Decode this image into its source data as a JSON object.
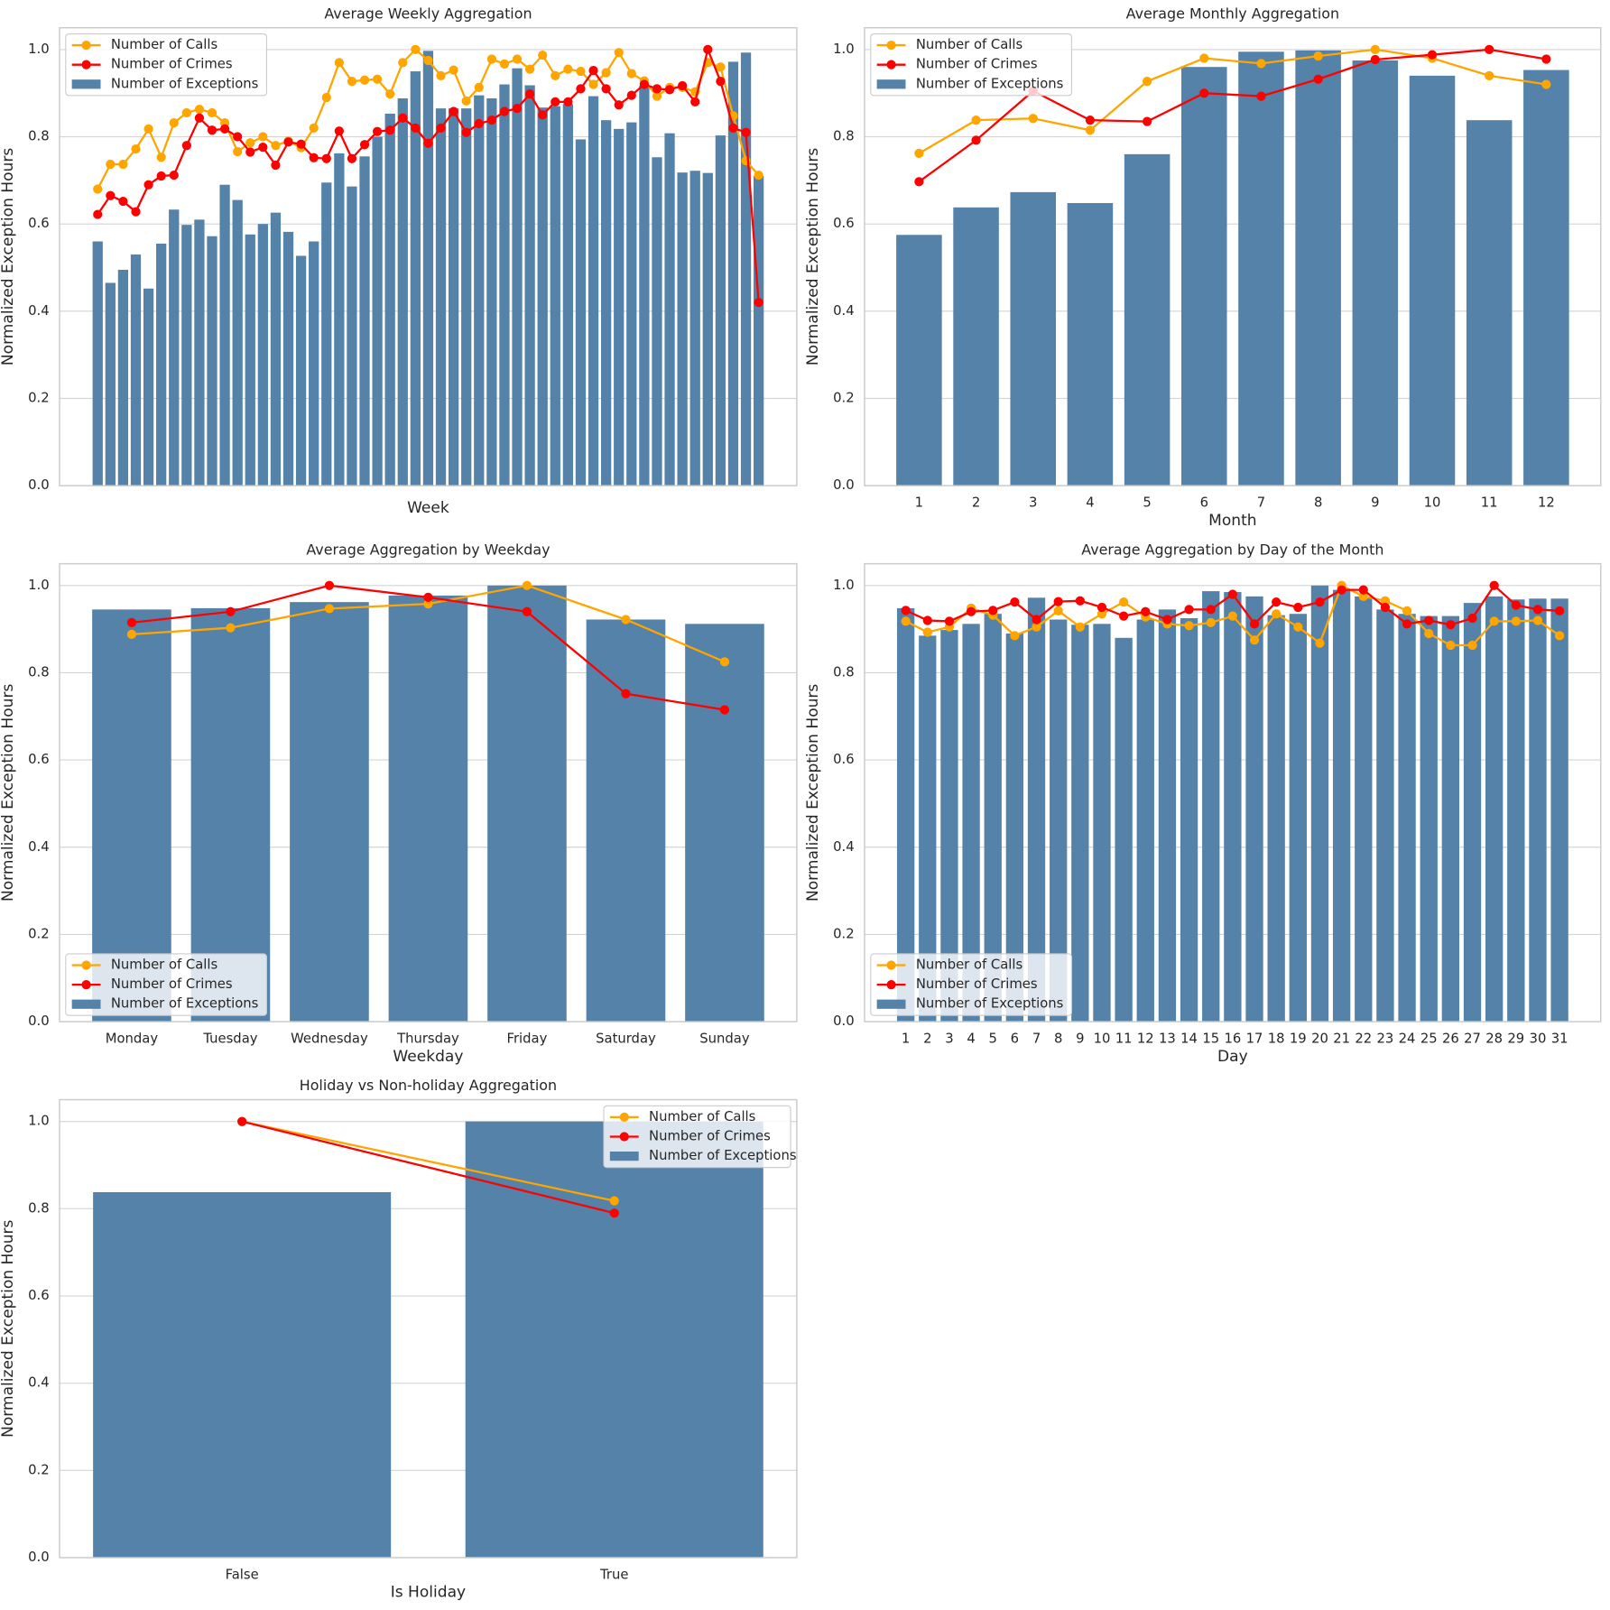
{
  "chart_data": [
    {
      "type": "bar",
      "title": "Average Weekly Aggregation",
      "xlabel": "Week",
      "ylabel": "Normalized Exception Hours",
      "categories": [
        null,
        null,
        null,
        null,
        null,
        null,
        null,
        null,
        null,
        null,
        null,
        null,
        null,
        null,
        null,
        null,
        null,
        null,
        null,
        null,
        null,
        null,
        null,
        null,
        null,
        null,
        null,
        null,
        null,
        null,
        null,
        null,
        null,
        null,
        null,
        null,
        null,
        null,
        null,
        null,
        null,
        null,
        null,
        null,
        null,
        null,
        null,
        null,
        null,
        null,
        null,
        null,
        null
      ],
      "series": [
        {
          "name": "Number of Calls",
          "type": "line",
          "color": "#ffa500",
          "values": [
            0.68,
            0.737,
            0.737,
            0.772,
            0.818,
            0.753,
            0.832,
            0.855,
            0.863,
            0.855,
            0.832,
            0.766,
            0.786,
            0.8,
            0.78,
            0.79,
            0.775,
            0.82,
            0.89,
            0.97,
            0.927,
            0.93,
            0.932,
            0.898,
            0.97,
            1.0,
            0.975,
            0.94,
            0.953,
            0.882,
            0.913,
            0.978,
            0.967,
            0.978,
            0.955,
            0.987,
            0.94,
            0.955,
            0.95,
            0.92,
            0.947,
            0.993,
            0.945,
            0.928,
            0.893,
            0.913,
            0.913,
            0.903,
            0.97,
            0.96,
            0.848,
            0.745,
            0.712
          ]
        },
        {
          "name": "Number of Crimes",
          "type": "line",
          "color": "#ff0000",
          "values": [
            0.622,
            0.665,
            0.652,
            0.628,
            0.69,
            0.71,
            0.712,
            0.78,
            0.843,
            0.815,
            0.818,
            0.8,
            0.765,
            0.776,
            0.735,
            0.788,
            0.783,
            0.752,
            0.75,
            0.813,
            0.75,
            0.782,
            0.812,
            0.815,
            0.843,
            0.82,
            0.785,
            0.82,
            0.858,
            0.81,
            0.83,
            0.838,
            0.858,
            0.865,
            0.898,
            0.85,
            0.88,
            0.88,
            0.91,
            0.952,
            0.91,
            0.873,
            0.895,
            0.92,
            0.91,
            0.908,
            0.917,
            0.88,
            1.0,
            0.927,
            0.82,
            0.81,
            0.42
          ]
        },
        {
          "name": "Number of Exceptions",
          "type": "bar",
          "color": "#5482a8",
          "values": [
            0.56,
            0.465,
            0.495,
            0.53,
            0.452,
            0.555,
            0.633,
            0.598,
            0.61,
            0.572,
            0.69,
            0.655,
            0.576,
            0.6,
            0.626,
            0.582,
            0.527,
            0.56,
            0.695,
            0.762,
            0.686,
            0.755,
            0.8,
            0.853,
            0.888,
            0.95,
            0.997,
            0.865,
            0.865,
            0.865,
            0.895,
            0.888,
            0.92,
            0.957,
            0.918,
            0.867,
            0.87,
            0.875,
            0.794,
            0.893,
            0.838,
            0.818,
            0.833,
            0.917,
            0.753,
            0.808,
            0.718,
            0.722,
            0.717,
            0.803,
            0.972,
            0.993,
            0.71
          ]
        }
      ],
      "ylim": [
        0,
        1.05
      ],
      "yticks": [
        {
          "value": 0,
          "label": "0.0"
        },
        0.2,
        0.4,
        0.6,
        0.8,
        {
          "value": 1,
          "label": "1.0"
        }
      ],
      "grid": true,
      "legend": "upper left"
    },
    {
      "type": "bar",
      "title": "Average Monthly Aggregation",
      "xlabel": "Month",
      "ylabel": "Normalized Exception Hours",
      "categories": [
        "1",
        "2",
        "3",
        "4",
        "5",
        "6",
        "7",
        "8",
        "9",
        "10",
        "11",
        "12"
      ],
      "series": [
        {
          "name": "Number of Calls",
          "type": "line",
          "color": "#ffa500",
          "values": [
            0.762,
            0.838,
            0.842,
            0.815,
            0.927,
            0.98,
            0.968,
            0.985,
            1.0,
            0.98,
            0.94,
            0.92
          ]
        },
        {
          "name": "Number of Crimes",
          "type": "line",
          "color": "#ff0000",
          "values": [
            0.697,
            0.792,
            0.905,
            0.838,
            0.835,
            0.9,
            0.893,
            0.932,
            0.977,
            0.988,
            1.0,
            0.978
          ]
        },
        {
          "name": "Number of Exceptions",
          "type": "bar",
          "color": "#5482a8",
          "values": [
            0.575,
            0.638,
            0.673,
            0.648,
            0.76,
            0.96,
            0.995,
            0.998,
            0.975,
            0.94,
            0.838,
            0.953
          ]
        }
      ],
      "ylim": [
        0,
        1.05
      ],
      "yticks": [
        {
          "value": 0,
          "label": "0.0"
        },
        0.2,
        0.4,
        0.6,
        0.8,
        {
          "value": 1,
          "label": "1.0"
        }
      ],
      "grid": true,
      "legend": "upper left"
    },
    {
      "type": "bar",
      "title": "Average Aggregation by Weekday",
      "xlabel": "Weekday",
      "ylabel": "Normalized Exception Hours",
      "categories": [
        "Monday",
        "Tuesday",
        "Wednesday",
        "Thursday",
        "Friday",
        "Saturday",
        "Sunday"
      ],
      "series": [
        {
          "name": "Number of Calls",
          "type": "line",
          "color": "#ffa500",
          "values": [
            0.888,
            0.903,
            0.947,
            0.958,
            1.0,
            0.922,
            0.825
          ]
        },
        {
          "name": "Number of Crimes",
          "type": "line",
          "color": "#ff0000",
          "values": [
            0.915,
            0.94,
            1.0,
            0.973,
            0.94,
            0.752,
            0.715
          ]
        },
        {
          "name": "Number of Exceptions",
          "type": "bar",
          "color": "#5482a8",
          "values": [
            0.945,
            0.948,
            0.962,
            0.977,
            1.0,
            0.922,
            0.912
          ]
        }
      ],
      "ylim": [
        0,
        1.05
      ],
      "yticks": [
        {
          "value": 0,
          "label": "0.0"
        },
        0.2,
        0.4,
        0.6,
        0.8,
        {
          "value": 1,
          "label": "1.0"
        }
      ],
      "grid": true,
      "legend": "lower left"
    },
    {
      "type": "bar",
      "title": "Average Aggregation by Day of the Month",
      "xlabel": "Day",
      "ylabel": "Normalized Exception Hours",
      "categories": [
        "1",
        "2",
        "3",
        "4",
        "5",
        "6",
        "7",
        "8",
        "9",
        "10",
        "11",
        "12",
        "13",
        "14",
        "15",
        "16",
        "17",
        "18",
        "19",
        "20",
        "21",
        "22",
        "23",
        "24",
        "25",
        "26",
        "27",
        "28",
        "29",
        "30",
        "31"
      ],
      "series": [
        {
          "name": "Number of Calls",
          "type": "line",
          "color": "#ffa500",
          "values": [
            0.918,
            0.893,
            0.905,
            0.948,
            0.932,
            0.885,
            0.905,
            0.942,
            0.905,
            0.935,
            0.962,
            0.928,
            0.912,
            0.908,
            0.915,
            0.93,
            0.875,
            0.935,
            0.905,
            0.868,
            1.0,
            0.975,
            0.965,
            0.942,
            0.89,
            0.863,
            0.863,
            0.918,
            0.918,
            0.92,
            0.885
          ]
        },
        {
          "name": "Number of Crimes",
          "type": "line",
          "color": "#ff0000",
          "values": [
            0.943,
            0.92,
            0.918,
            0.94,
            0.943,
            0.962,
            0.922,
            0.963,
            0.965,
            0.95,
            0.93,
            0.94,
            0.922,
            0.945,
            0.945,
            0.98,
            0.912,
            0.962,
            0.95,
            0.962,
            0.99,
            0.99,
            0.95,
            0.912,
            0.92,
            0.91,
            0.925,
            1.0,
            0.955,
            0.945,
            0.942
          ]
        },
        {
          "name": "Number of Exceptions",
          "type": "bar",
          "color": "#5482a8",
          "values": [
            0.948,
            0.885,
            0.898,
            0.912,
            0.935,
            0.89,
            0.972,
            0.922,
            0.91,
            0.912,
            0.88,
            0.922,
            0.945,
            0.925,
            0.987,
            0.985,
            0.975,
            0.932,
            0.935,
            1.0,
            0.99,
            0.975,
            0.945,
            0.935,
            0.93,
            0.93,
            0.96,
            0.975,
            0.968,
            0.97,
            0.97
          ]
        }
      ],
      "ylim": [
        0,
        1.05
      ],
      "yticks": [
        {
          "value": 0,
          "label": "0.0"
        },
        0.2,
        0.4,
        0.6,
        0.8,
        {
          "value": 1,
          "label": "1.0"
        }
      ],
      "grid": true,
      "legend": "lower left"
    },
    {
      "type": "bar",
      "title": "Holiday vs Non-holiday Aggregation",
      "xlabel": "Is Holiday",
      "ylabel": "Normalized Exception Hours",
      "categories": [
        "False",
        "True"
      ],
      "series": [
        {
          "name": "Number of Calls",
          "type": "line",
          "color": "#ffa500",
          "values": [
            1.0,
            0.818
          ]
        },
        {
          "name": "Number of Crimes",
          "type": "line",
          "color": "#ff0000",
          "values": [
            1.0,
            0.79
          ]
        },
        {
          "name": "Number of Exceptions",
          "type": "bar",
          "color": "#5482a8",
          "values": [
            0.838,
            1.0
          ]
        }
      ],
      "ylim": [
        0,
        1.05
      ],
      "yticks": [
        {
          "value": 0,
          "label": "0.0"
        },
        0.2,
        0.4,
        0.6,
        0.8,
        {
          "value": 1,
          "label": "1.0"
        }
      ],
      "grid": true,
      "legend": "upper right"
    }
  ]
}
